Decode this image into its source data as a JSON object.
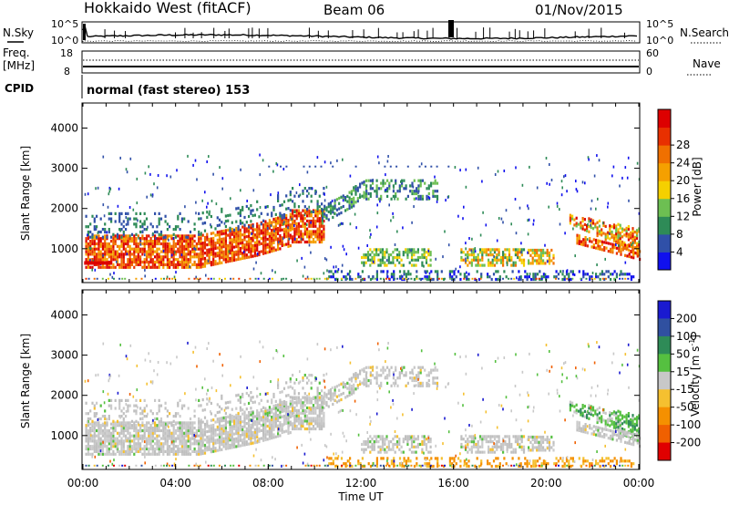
{
  "header": {
    "title": "Hokkaido West (fitACF)",
    "beam": "Beam 06",
    "date": "01/Nov/2015"
  },
  "noise_panel": {
    "left_label": "N.Sky",
    "right_label": "N.Search",
    "left_ticks": [
      "10^5",
      "10^0"
    ],
    "right_ticks": [
      "10^5",
      "10^0"
    ]
  },
  "freq_panel": {
    "left_label_1": "Freq.",
    "left_label_2": "[MHz]",
    "right_label": "Nave",
    "left_ticks": [
      "18",
      "8"
    ],
    "right_ticks": [
      "60",
      "0"
    ]
  },
  "cpid": {
    "label": "CPID",
    "text": "normal (fast stereo) 153"
  },
  "chart_data": [
    {
      "type": "heatmap",
      "title": "",
      "quantity": "Power",
      "ylabel": "Slant Range [km]",
      "xlabel": "",
      "ylim": [
        180,
        4600
      ],
      "yticks": [
        "1000",
        "2000",
        "3000",
        "4000"
      ],
      "colorbar_label": "Power [dB]",
      "colorbar_ticks": [
        "4",
        "8",
        "12",
        "16",
        "20",
        "24",
        "28"
      ],
      "colorbar_colors": [
        "#1010ee",
        "#3050a8",
        "#2e8b57",
        "#6dbf52",
        "#f5d000",
        "#f5a000",
        "#f07000",
        "#e83000",
        "#dd0000"
      ]
    },
    {
      "type": "heatmap",
      "title": "",
      "quantity": "Velocity",
      "ylabel": "Slant Range [km]",
      "xlabel": "Time UT",
      "ylim": [
        180,
        4600
      ],
      "yticks": [
        "1000",
        "2000",
        "3000",
        "4000"
      ],
      "xticks": [
        "00:00",
        "04:00",
        "08:00",
        "12:00",
        "16:00",
        "20:00",
        "00:00"
      ],
      "colorbar_label": "Velocity [m s^-1]",
      "colorbar_ticks": [
        "200",
        "100",
        "50",
        "15",
        "-15",
        "-50",
        "-100",
        "-200"
      ],
      "colorbar_colors": [
        "#1a1ad0",
        "#3050a0",
        "#2e8b57",
        "#55c040",
        "#c8c8c8",
        "#f5c030",
        "#f59000",
        "#f06000",
        "#e00000"
      ]
    }
  ]
}
